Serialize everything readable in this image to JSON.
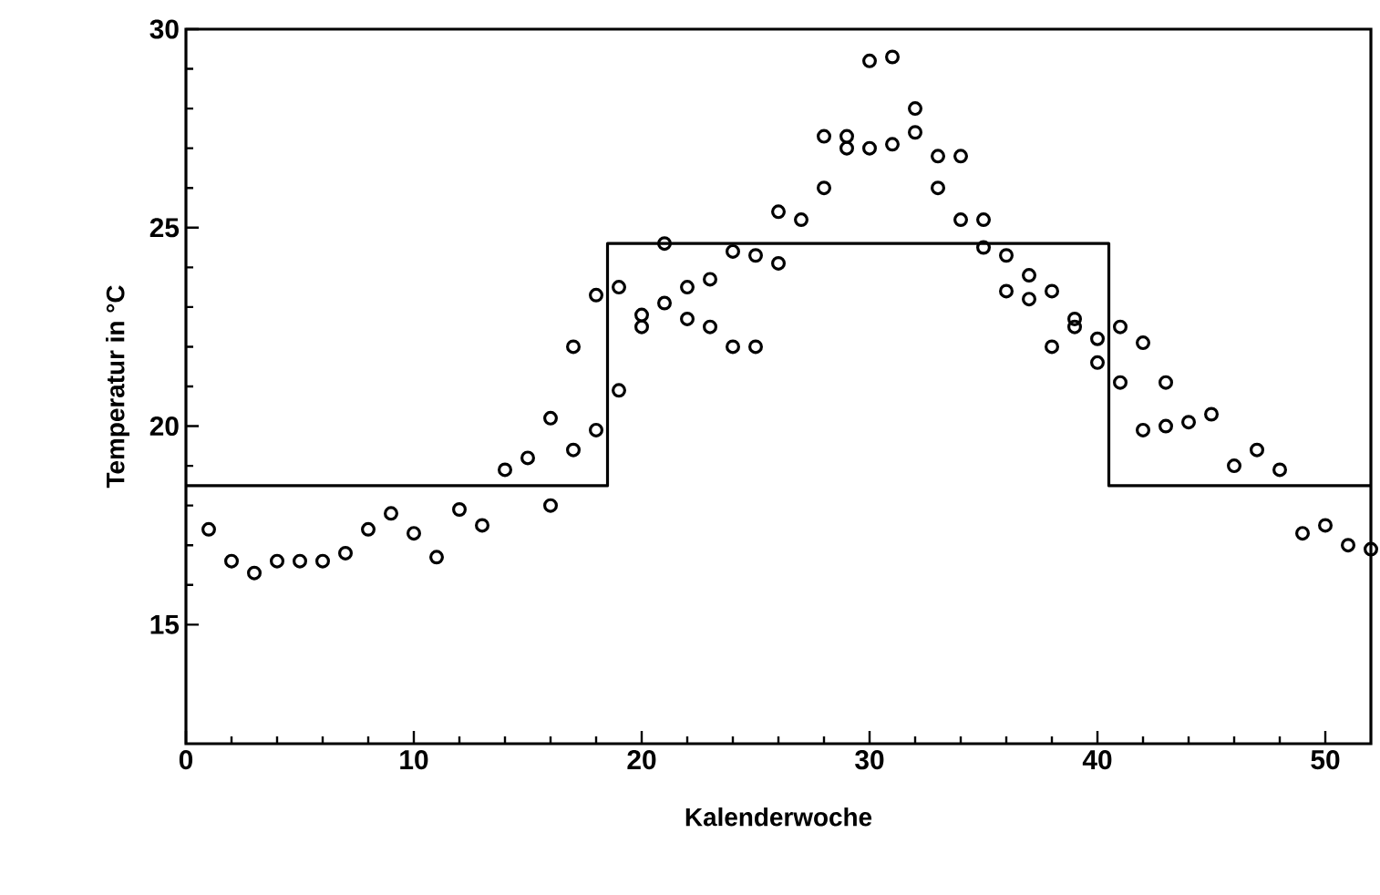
{
  "chart_data": {
    "type": "scatter",
    "xlabel": "Kalenderwoche",
    "ylabel": "Temperatur in °C",
    "xlim": [
      0,
      52
    ],
    "ylim": [
      12,
      30
    ],
    "xticks": [
      0,
      10,
      20,
      30,
      40,
      50
    ],
    "yticks": [
      15,
      20,
      25,
      30
    ],
    "series": [
      {
        "marker": "circle",
        "color": "#000000",
        "x": [
          1,
          2,
          3,
          4,
          5,
          6,
          7,
          8,
          9,
          10,
          11,
          12,
          13,
          14,
          15,
          16,
          16,
          17,
          17,
          18,
          18,
          19,
          19,
          20,
          20,
          21,
          21,
          22,
          22,
          23,
          23,
          24,
          24,
          25,
          25,
          26,
          26,
          27,
          28,
          28,
          29,
          29,
          30,
          30,
          31,
          31,
          32,
          32,
          33,
          33,
          34,
          34,
          35,
          35,
          36,
          36,
          37,
          37,
          38,
          38,
          39,
          39,
          40,
          40,
          41,
          41,
          42,
          42,
          43,
          43,
          44,
          45,
          46,
          47,
          48,
          49,
          50,
          51,
          52
        ],
        "values": [
          17.4,
          16.6,
          16.3,
          16.6,
          16.6,
          16.6,
          16.8,
          17.4,
          17.8,
          17.3,
          16.7,
          17.9,
          17.5,
          18.9,
          19.2,
          20.2,
          18.0,
          19.4,
          22.0,
          19.9,
          23.3,
          20.9,
          23.5,
          22.8,
          22.5,
          24.6,
          23.1,
          23.5,
          22.7,
          23.7,
          22.5,
          22.0,
          24.4,
          22.0,
          24.3,
          24.1,
          25.4,
          25.2,
          26.0,
          27.3,
          27.3,
          27.0,
          27.0,
          29.2,
          27.1,
          29.3,
          27.4,
          28.0,
          26.8,
          26.0,
          26.8,
          25.2,
          25.2,
          24.5,
          24.3,
          23.4,
          23.8,
          23.2,
          23.4,
          22.0,
          22.7,
          22.5,
          22.2,
          21.6,
          22.5,
          21.1,
          22.1,
          19.9,
          21.1,
          20.0,
          20.1,
          20.3,
          19.0,
          19.4,
          18.9,
          17.3,
          17.5,
          17.0,
          16.9
        ]
      },
      {
        "type": "step",
        "color": "#000000",
        "x": [
          0,
          18.5,
          40.5,
          52
        ],
        "values": [
          18.5,
          24.6,
          18.5,
          18.5
        ]
      }
    ]
  }
}
